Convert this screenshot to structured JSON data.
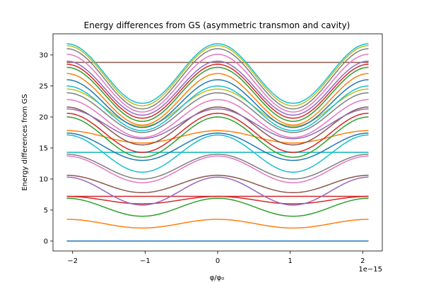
{
  "chart_data": {
    "type": "line",
    "title": "Energy differences from GS (asymmetric transmon and cavity)",
    "xlabel": "φ/φ₀",
    "ylabel": "Energy differences from GS",
    "x_offset_text": "1e−15",
    "xlim": [
      -2.27,
      2.27
    ],
    "ylim": [
      -1.6,
      33.4
    ],
    "grid": false,
    "x_ticks": [
      {
        "v": -2,
        "label": "−2"
      },
      {
        "v": -1,
        "label": "−1"
      },
      {
        "v": 0,
        "label": "0"
      },
      {
        "v": 1,
        "label": "1"
      },
      {
        "v": 2,
        "label": "2"
      }
    ],
    "y_ticks": [
      {
        "v": 0,
        "label": "0"
      },
      {
        "v": 5,
        "label": "5"
      },
      {
        "v": 10,
        "label": "10"
      },
      {
        "v": 15,
        "label": "15"
      },
      {
        "v": 20,
        "label": "20"
      },
      {
        "v": 25,
        "label": "25"
      },
      {
        "v": 30,
        "label": "30"
      }
    ],
    "x_range_data": [
      -2.08,
      2.08
    ],
    "flux_period": 2.08,
    "series": [
      {
        "color": "#1f77b4",
        "min": 0.0,
        "max": 0.0
      },
      {
        "color": "#ff7f0e",
        "min": 2.1,
        "max": 3.5
      },
      {
        "color": "#2ca02c",
        "min": 4.0,
        "max": 6.9
      },
      {
        "color": "#d62728",
        "min": 7.2,
        "max": 7.2
      },
      {
        "color": "#d62728",
        "min": 6.0,
        "max": 7.2
      },
      {
        "color": "#9467bd",
        "min": 5.8,
        "max": 10.3
      },
      {
        "color": "#8c564b",
        "min": 7.8,
        "max": 10.6
      },
      {
        "color": "#e377c2",
        "min": 9.4,
        "max": 13.7
      },
      {
        "color": "#7f7f7f",
        "min": 10.0,
        "max": 14.0
      },
      {
        "color": "#bcbd22",
        "min": 14.3,
        "max": 14.3
      },
      {
        "color": "#17becf",
        "min": 14.3,
        "max": 14.3
      },
      {
        "color": "#17becf",
        "min": 11.1,
        "max": 17.1
      },
      {
        "color": "#1f77b4",
        "min": 13.0,
        "max": 17.4
      },
      {
        "color": "#ff7f0e",
        "min": 15.8,
        "max": 17.8
      },
      {
        "color": "#2ca02c",
        "min": 13.5,
        "max": 20.0
      },
      {
        "color": "#8c564b",
        "min": 15.5,
        "max": 21.6
      },
      {
        "color": "#d62728",
        "min": 14.3,
        "max": 20.6
      },
      {
        "color": "#9467bd",
        "min": 16.5,
        "max": 21.3
      },
      {
        "color": "#e377c2",
        "min": 16.7,
        "max": 22.8
      },
      {
        "color": "#7f7f7f",
        "min": 17.5,
        "max": 23.9
      },
      {
        "color": "#bcbd22",
        "min": 18.5,
        "max": 24.5
      },
      {
        "color": "#17becf",
        "min": 17.8,
        "max": 25.0
      },
      {
        "color": "#1f77b4",
        "min": 18.3,
        "max": 26.0
      },
      {
        "color": "#ff7f0e",
        "min": 18.7,
        "max": 27.0
      },
      {
        "color": "#2ca02c",
        "min": 19.3,
        "max": 28.0
      },
      {
        "color": "#d62728",
        "min": 19.8,
        "max": 28.5
      },
      {
        "color": "#8c564b",
        "min": 28.8,
        "max": 28.8
      },
      {
        "color": "#9467bd",
        "min": 20.3,
        "max": 29.0
      },
      {
        "color": "#e377c2",
        "min": 20.8,
        "max": 30.1
      },
      {
        "color": "#7f7f7f",
        "min": 21.3,
        "max": 31.0
      },
      {
        "color": "#bcbd22",
        "min": 21.8,
        "max": 31.5
      },
      {
        "color": "#17becf",
        "min": 22.2,
        "max": 31.8
      }
    ]
  }
}
